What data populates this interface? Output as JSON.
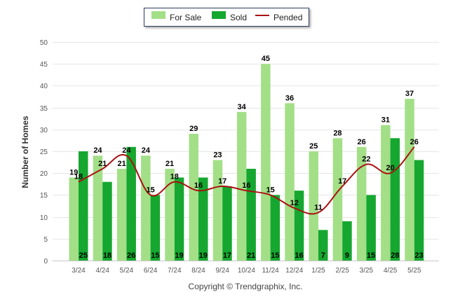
{
  "legend": {
    "for_sale": "For Sale",
    "sold": "Sold",
    "pended": "Pended"
  },
  "footer": {
    "copyright": "Copyright © Trendgraphix, Inc."
  },
  "colors": {
    "for_sale": "#a3df87",
    "sold": "#15a72f",
    "pended": "#aa1111",
    "grid": "#e6e6e6"
  },
  "chart_data": {
    "type": "bar",
    "title": "",
    "xlabel": "",
    "ylabel": "Number of Homes",
    "ylim": [
      0,
      50
    ],
    "yticks": [
      0,
      5,
      10,
      15,
      20,
      25,
      30,
      35,
      40,
      45,
      50
    ],
    "grid": true,
    "legend_position": "top-center",
    "categories": [
      "3/24",
      "4/24",
      "5/24",
      "6/24",
      "7/24",
      "8/24",
      "9/24",
      "10/24",
      "11/24",
      "12/24",
      "1/25",
      "2/25",
      "3/25",
      "4/25",
      "5/25"
    ],
    "series": [
      {
        "name": "For Sale",
        "type": "bar",
        "values": [
          19,
          24,
          21,
          24,
          21,
          29,
          23,
          34,
          45,
          36,
          25,
          28,
          26,
          31,
          37
        ]
      },
      {
        "name": "Sold",
        "type": "bar",
        "values": [
          25,
          18,
          26,
          15,
          19,
          19,
          17,
          21,
          15,
          16,
          7,
          9,
          15,
          28,
          23
        ]
      },
      {
        "name": "Pended",
        "type": "line",
        "values": [
          18,
          21,
          24,
          15,
          18,
          16,
          17,
          16,
          15,
          12,
          11,
          17,
          22,
          20,
          26
        ]
      }
    ]
  }
}
